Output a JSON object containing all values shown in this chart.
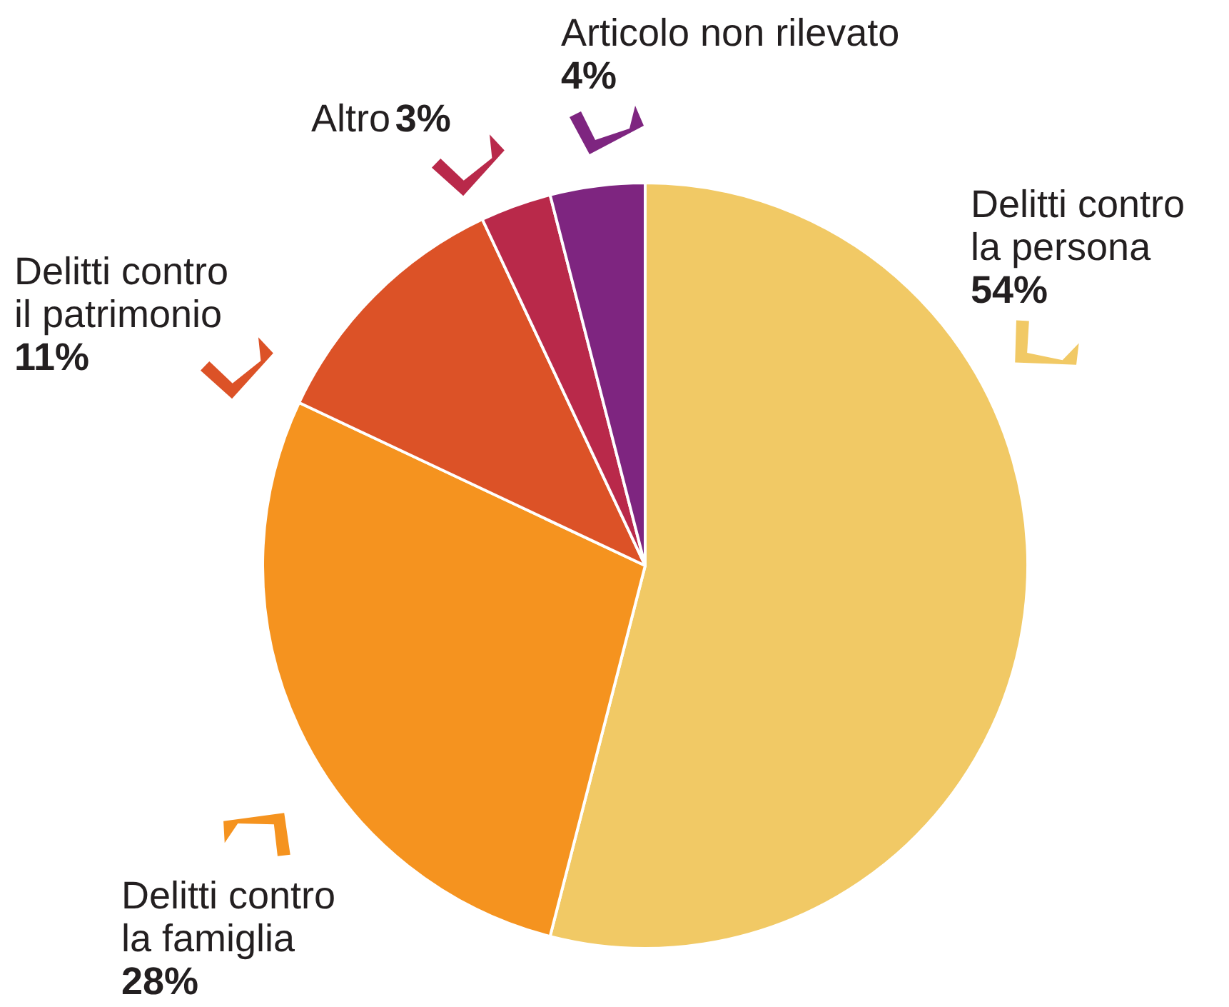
{
  "chart_data": {
    "type": "pie",
    "categories": [
      "Delitti contro la persona",
      "Delitti contro la famiglia",
      "Delitti contro il patrimonio",
      "Altro",
      "Articolo non rilevato"
    ],
    "values": [
      54,
      28,
      11,
      3,
      4
    ],
    "colors": [
      "#f1c965",
      "#f5931f",
      "#dc5227",
      "#b9294a",
      "#7e2580"
    ],
    "value_labels": [
      "54%",
      "28%",
      "11%",
      "3%",
      "4%"
    ]
  }
}
